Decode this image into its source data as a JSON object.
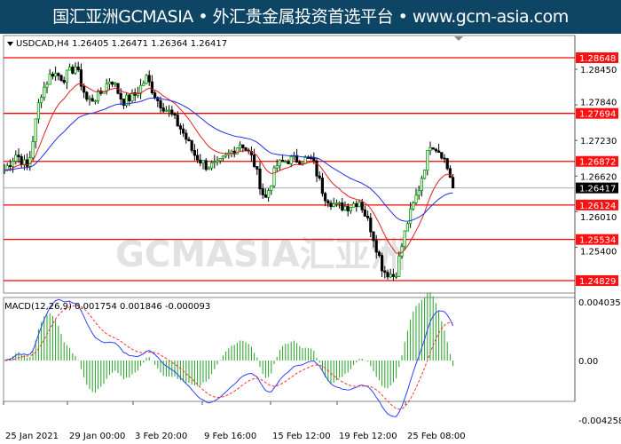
{
  "banner": {
    "text": "国汇亚洲GCMASIA • 外汇贵金属投资首选平台 • www.gcm-asia.com"
  },
  "watermark": "GCMASIA汇亚洲",
  "chart_data": [
    {
      "type": "candlestick",
      "title": "USDCAD,H4  1.26405 1.26471 1.26364 1.26417",
      "symbol": "USDCAD,H4",
      "ohlc_last": [
        1.26405,
        1.26471,
        1.26364,
        1.26417
      ],
      "current_price": "1.26417",
      "ylim": [
        1.2445,
        1.2905
      ],
      "y_ticks": [
        "1.28450",
        "1.27840",
        "1.27230",
        "1.26620",
        "1.26010",
        "1.25400"
      ],
      "levels": [
        "1.28648",
        "1.27694",
        "1.26872",
        "1.26124",
        "1.25534",
        "1.24829"
      ],
      "x_ticks": [
        "25 Jan 2021",
        "29 Jan 00:00",
        "3 Feb 20:00",
        "9 Feb 16:00",
        "15 Feb 12:00",
        "19 Feb 12:00",
        "25 Feb 08:00"
      ],
      "close_path": [
        1.2672,
        1.27,
        1.2675,
        1.28,
        1.284,
        1.283,
        1.285,
        1.279,
        1.28,
        1.283,
        1.279,
        1.28,
        1.283,
        1.279,
        1.277,
        1.274,
        1.27,
        1.268,
        1.268,
        1.27,
        1.272,
        1.269,
        1.262,
        1.268,
        1.269,
        1.269,
        1.269,
        1.263,
        1.261,
        1.261,
        1.262,
        1.257,
        1.25,
        1.249,
        1.258,
        1.264,
        1.272,
        1.27,
        1.2642
      ],
      "series": [
        {
          "name": "MA fast",
          "color": "#e02020"
        },
        {
          "name": "MA slow",
          "color": "#2030e0"
        }
      ],
      "colors": {
        "bull": "#00a000",
        "bear": "#000000",
        "level": "#ff0000"
      }
    },
    {
      "type": "macd",
      "title": "MACD(12,26,9) 0.001754 0.001846 -0.000093",
      "ylim": [
        -0.004258,
        0.004035
      ],
      "y_ticks": [
        "0.004035",
        "0.00",
        "-0.004258"
      ],
      "colors": {
        "histogram": "#22a022",
        "macd": "#3040ff",
        "signal": "#ff3030"
      }
    }
  ]
}
